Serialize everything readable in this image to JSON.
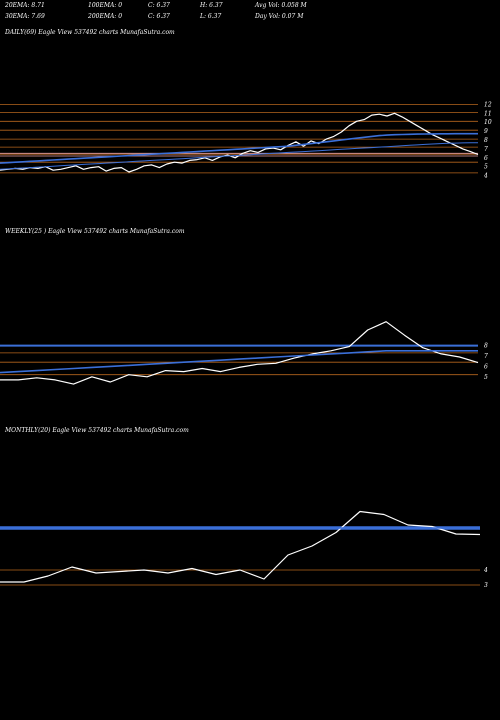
{
  "header": {
    "stats": [
      {
        "label": "20EMA: 8.71"
      },
      {
        "label": "100EMA: 0"
      },
      {
        "label": "C: 6.37"
      },
      {
        "label": "H: 6.37"
      },
      {
        "label": "Avg Vol: 0.058 M"
      },
      {
        "label": "30EMA: 7.69"
      },
      {
        "label": "200EMA: 0"
      },
      {
        "label": "C: 6.37"
      },
      {
        "label": "L: 6.37"
      },
      {
        "label": "Day Vol: 0.07 M"
      }
    ]
  },
  "colors": {
    "background": "#000000",
    "price": "#ffffff",
    "ema": "#3b6fd8",
    "levels": "#b5651d",
    "pink": "#e8a0a0",
    "text": "#ffffff"
  },
  "chart_data": [
    {
      "type": "line",
      "title": "DAILY(69) Eagle  View  537492  charts MunafaSutra.com",
      "y_ticks": [
        "12",
        "11",
        "10",
        "9",
        "8",
        "7",
        "6",
        "5",
        "4"
      ],
      "ylim": [
        3.5,
        12.5
      ],
      "levels": [
        12,
        11.1,
        10.1,
        9.1,
        8.1,
        7.2,
        6.4,
        5.5,
        4.3
      ],
      "series": [
        {
          "values": [
            4.6,
            4.7,
            4.8,
            4.7,
            4.9,
            4.8,
            5.0,
            4.6,
            4.7,
            4.9,
            5.1,
            4.7,
            4.9,
            5.0,
            4.5,
            4.8,
            4.9,
            4.4,
            4.7,
            5.1,
            5.2,
            4.9,
            5.3,
            5.5,
            5.4,
            5.7,
            5.8,
            6.0,
            5.7,
            6.1,
            6.3,
            6.0,
            6.5,
            6.8,
            6.6,
            7.0,
            7.1,
            6.9,
            7.4,
            7.8,
            7.3,
            7.9,
            7.6,
            8.1,
            8.4,
            8.9,
            9.6,
            10.1,
            10.3,
            10.8,
            10.9,
            10.7,
            11.0,
            10.6,
            10.1,
            9.6,
            9.1,
            8.6,
            8.2,
            7.8,
            7.4,
            7.0,
            6.7,
            6.37
          ]
        },
        {
          "values": [
            5.4,
            5.45,
            5.5,
            5.55,
            5.6,
            5.65,
            5.7,
            5.75,
            5.8,
            5.85,
            5.9,
            5.95,
            6.0,
            6.05,
            6.1,
            6.15,
            6.2,
            6.25,
            6.3,
            6.35,
            6.4,
            6.45,
            6.5,
            6.55,
            6.6,
            6.65,
            6.7,
            6.75,
            6.8,
            6.85,
            6.9,
            6.95,
            7.0,
            7.05,
            7.1,
            7.15,
            7.2,
            7.25,
            7.3,
            7.4,
            7.5,
            7.6,
            7.7,
            7.8,
            7.9,
            8.0,
            8.1,
            8.2,
            8.3,
            8.4,
            8.5,
            8.55,
            8.6,
            8.62,
            8.64,
            8.66,
            8.68,
            8.69,
            8.7,
            8.7,
            8.71,
            8.71,
            8.71,
            8.71
          ]
        },
        {
          "values": [
            4.7,
            4.75,
            4.8,
            4.85,
            4.9,
            4.95,
            5.0,
            5.05,
            5.1,
            5.15,
            5.2,
            5.25,
            5.3,
            5.35,
            5.4,
            5.45,
            5.5,
            5.55,
            5.6,
            5.65,
            5.7,
            5.75,
            5.8,
            5.85,
            5.9,
            5.95,
            6.0,
            6.05,
            6.1,
            6.15,
            6.2,
            6.25,
            6.3,
            6.35,
            6.4,
            6.45,
            6.5,
            6.55,
            6.6,
            6.65,
            6.7,
            6.75,
            6.8,
            6.85,
            6.9,
            6.95,
            7.0,
            7.05,
            7.1,
            7.15,
            7.2,
            7.25,
            7.3,
            7.35,
            7.4,
            7.45,
            7.5,
            7.55,
            7.6,
            7.63,
            7.65,
            7.67,
            7.68,
            7.69
          ]
        }
      ]
    },
    {
      "type": "line",
      "title": "WEEKLY(25                                   ) Eagle  View  537492  charts MunafaSutra.com",
      "y_ticks": [
        "8",
        "7",
        "6",
        "5"
      ],
      "ylim": [
        4.5,
        9.5
      ],
      "levels": [
        8.0,
        7.3,
        6.4,
        5.2
      ],
      "series": [
        {
          "values": [
            4.7,
            4.7,
            4.9,
            4.7,
            4.3,
            5.0,
            4.5,
            5.2,
            5.0,
            5.6,
            5.5,
            5.8,
            5.5,
            5.9,
            6.2,
            6.3,
            6.8,
            7.2,
            7.5,
            7.9,
            9.5,
            10.3,
            9.0,
            7.8,
            7.2,
            6.9,
            6.37
          ]
        },
        {
          "values": [
            5.4,
            5.5,
            5.6,
            5.7,
            5.8,
            5.9,
            6.0,
            6.1,
            6.2,
            6.3,
            6.4,
            6.5,
            6.6,
            6.7,
            6.8,
            6.9,
            7.0,
            7.1,
            7.2,
            7.3,
            7.4,
            7.5,
            7.5,
            7.5,
            7.5,
            7.5,
            7.5
          ]
        }
      ]
    },
    {
      "type": "line",
      "title": "MONTHLY(20) Eagle  View  537492  charts MunafaSutra.com",
      "y_ticks": [
        "3",
        "4"
      ],
      "ylim": [
        2.0,
        8.0
      ],
      "levels": [
        6.8,
        3.0,
        4.0
      ],
      "series": [
        {
          "values": [
            3.2,
            3.2,
            3.6,
            4.2,
            3.8,
            3.9,
            4.0,
            3.8,
            4.1,
            3.7,
            4.0,
            3.4,
            5.0,
            5.6,
            6.5,
            7.9,
            7.7,
            7.0,
            6.9,
            6.4,
            6.37
          ]
        },
        {
          "values": [
            6.8,
            6.8,
            6.8,
            6.8,
            6.8,
            6.8,
            6.8,
            6.8,
            6.8,
            6.8,
            6.8,
            6.8,
            6.8,
            6.8,
            6.8,
            6.8,
            6.8,
            6.8,
            6.8,
            6.8,
            6.8
          ]
        }
      ]
    }
  ]
}
